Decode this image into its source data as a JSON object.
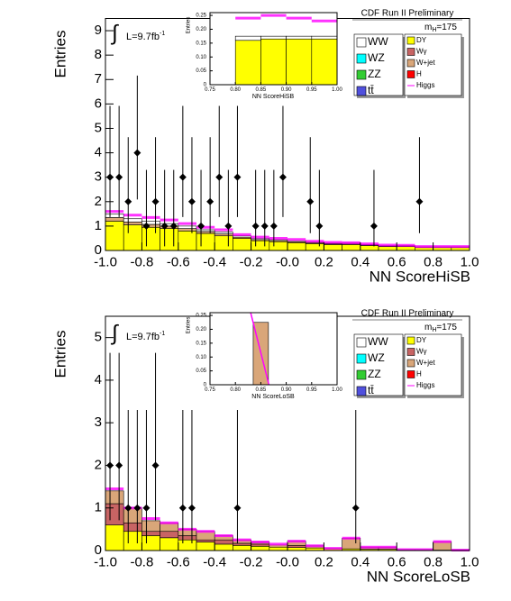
{
  "chart_data": [
    {
      "type": "histogram",
      "title": "CDF Run II Preliminary",
      "mass_label": "m",
      "mass_sub": "H",
      "mass_value": "=175",
      "lumi_symbol": "∫",
      "lumi": "L=9.7fb",
      "lumi_sup": "-1",
      "xlabel": "NN ScoreHiSB",
      "ylabel": "Entries",
      "xlim": [
        -1,
        1
      ],
      "ylim": [
        0,
        9.5
      ],
      "xticks": [
        {
          "value": -1,
          "label": "-1.0"
        },
        -0.8,
        -0.6,
        -0.4,
        -0.2,
        {
          "value": 0,
          "label": "-0.0"
        },
        0.2,
        0.4,
        0.6,
        0.8,
        {
          "value": 1,
          "label": "1.0"
        }
      ],
      "yticks": [
        0,
        1,
        2,
        3,
        4,
        5,
        6,
        7,
        8,
        9
      ],
      "bins": [
        -1,
        -0.9,
        -0.8,
        -0.7,
        -0.6,
        -0.5,
        -0.4,
        -0.3,
        -0.2,
        -0.1,
        0,
        0.1,
        0.2,
        0.3,
        0.4,
        0.5,
        0.6,
        0.7,
        0.8,
        0.9,
        1
      ],
      "series": [
        {
          "name": "DY",
          "color": "#ffff00",
          "values": [
            1.2,
            1.05,
            0.95,
            0.9,
            0.8,
            0.7,
            0.6,
            0.5,
            0.4,
            0.36,
            0.32,
            0.28,
            0.24,
            0.24,
            0.2,
            0.16,
            0.16,
            0.12,
            0.12,
            0.12
          ]
        },
        {
          "name": "Wγ",
          "color": "#c86464"
        },
        {
          "name": "W+jet",
          "color": "#d9a679",
          "values": [
            0.15,
            0.12,
            0.12,
            0.1,
            0.1,
            0.08,
            0.08,
            0.05,
            0.05,
            0.05,
            0.04,
            0.04,
            0.03,
            0.03,
            0.03,
            0.02,
            0.02,
            0.02,
            0.02,
            0.02
          ]
        },
        {
          "name": "H",
          "color": "#ff0000"
        },
        {
          "name": "Higgs",
          "color": "#ff00ff",
          "style": "line",
          "values": [
            1.6,
            1.45,
            1.35,
            1.25,
            1.1,
            0.95,
            0.85,
            0.65,
            0.55,
            0.5,
            0.45,
            0.38,
            0.33,
            0.32,
            0.27,
            0.22,
            0.21,
            0.16,
            0.16,
            0.16
          ]
        },
        {
          "name": "WW",
          "color": "#ffffff",
          "values": [
            0.15,
            0.13,
            0.13,
            0.1,
            0.1,
            0.07,
            0.07,
            0.05,
            0.05,
            0.04,
            0.04,
            0.03,
            0.03,
            0.03,
            0.02,
            0.02,
            0.02,
            0.01,
            0.01,
            0.01
          ]
        },
        {
          "name": "WZ",
          "color": "#00ffff"
        },
        {
          "name": "ZZ",
          "color": "#33cc33"
        },
        {
          "name": "tt̄",
          "color": "#5050dd"
        }
      ],
      "data": {
        "x": [
          -0.975,
          -0.925,
          -0.875,
          -0.825,
          -0.775,
          -0.725,
          -0.675,
          -0.625,
          -0.575,
          -0.525,
          -0.475,
          -0.425,
          -0.375,
          -0.325,
          -0.275,
          -0.175,
          -0.125,
          -0.075,
          -0.025,
          0.125,
          0.175,
          0.475,
          0.725
        ],
        "values": [
          3,
          3,
          2,
          4,
          1,
          2,
          1,
          1,
          3,
          2,
          1,
          2,
          3,
          1,
          3,
          1,
          1,
          1,
          3,
          2,
          1,
          1,
          2
        ],
        "errors_low": [
          1.63,
          1.63,
          1.29,
          1.91,
          0.83,
          1.29,
          0.83,
          0.83,
          1.63,
          1.29,
          0.83,
          1.29,
          1.63,
          0.83,
          1.63,
          0.83,
          0.83,
          0.83,
          1.63,
          1.29,
          0.83,
          0.83,
          1.29
        ],
        "errors_high": [
          2.92,
          2.92,
          2.64,
          3.16,
          2.3,
          2.64,
          2.3,
          2.3,
          2.92,
          2.64,
          2.3,
          2.64,
          2.92,
          2.3,
          2.92,
          2.3,
          2.3,
          2.3,
          2.92,
          2.64,
          2.3,
          2.3,
          2.64
        ]
      },
      "inset": {
        "xlabel": "NN ScoreHiSB",
        "ylabel": "Entries",
        "xlim": [
          0.75,
          1
        ],
        "ylim": [
          0,
          0.26
        ],
        "xticks": [
          0.75,
          {
            "value": 0.8,
            "label": "0.80"
          },
          0.85,
          {
            "value": 0.9,
            "label": "0.90"
          },
          0.95,
          {
            "value": 1,
            "label": "1.00"
          }
        ],
        "yticks": [
          0,
          0.05,
          {
            "value": 0.1,
            "label": "0.10"
          },
          0.15,
          {
            "value": 0.2,
            "label": "0.20"
          },
          0.25
        ],
        "bins": [
          0.75,
          0.8,
          0.85,
          0.9,
          0.95,
          1
        ],
        "series": [
          {
            "color": "#ffff00",
            "values": [
              0,
              0.16,
              0.165,
              0.165,
              0.165
            ]
          },
          {
            "color": "#ffffff",
            "values": [
              0,
              0.015,
              0.01,
              0.01,
              0.01
            ]
          },
          {
            "color": "#ff00ff",
            "style": "line",
            "values": [
              0,
              0.24,
              0.25,
              0.24,
              0.23
            ]
          }
        ]
      }
    },
    {
      "type": "histogram",
      "title": "CDF Run II Preliminary",
      "mass_label": "m",
      "mass_sub": "H",
      "mass_value": "=175",
      "lumi_symbol": "∫",
      "lumi": "L=9.7fb",
      "lumi_sup": "-1",
      "xlabel": "NN ScoreLoSB",
      "ylabel": "Entries",
      "xlim": [
        -1,
        1
      ],
      "ylim": [
        0,
        5.5
      ],
      "xticks": [
        {
          "value": -1,
          "label": "-1.0"
        },
        -0.8,
        -0.6,
        -0.4,
        -0.2,
        {
          "value": 0,
          "label": "-0.0"
        },
        0.2,
        0.4,
        0.6,
        0.8,
        {
          "value": 1,
          "label": "1.0"
        }
      ],
      "yticks": [
        0,
        1,
        2,
        3,
        4,
        5
      ],
      "bins": [
        -1,
        -0.9,
        -0.8,
        -0.7,
        -0.6,
        -0.5,
        -0.4,
        -0.3,
        -0.2,
        -0.1,
        0,
        0.1,
        0.2,
        0.3,
        0.4,
        0.5,
        0.6,
        0.7,
        0.8,
        0.9,
        1
      ],
      "series": [
        {
          "name": "DY",
          "color": "#ffff00",
          "values": [
            0.6,
            0.45,
            0.35,
            0.3,
            0.25,
            0.2,
            0.15,
            0.12,
            0.1,
            0.08,
            0.07,
            0.06,
            0.05,
            0.04,
            0.03,
            0.03,
            0.02,
            0.02,
            0.01,
            0.01
          ]
        },
        {
          "name": "Wγ",
          "color": "#c86464",
          "values": [
            0.5,
            0.2,
            0.1,
            0.15,
            0.1,
            0.05,
            0.1,
            0.05,
            0.05,
            0,
            0.05,
            0,
            0,
            0,
            0,
            0,
            0,
            0,
            0,
            0
          ]
        },
        {
          "name": "W+jet",
          "color": "#d9a679",
          "values": [
            0.3,
            0.35,
            0.25,
            0.2,
            0.15,
            0.2,
            0.1,
            0.08,
            0.05,
            0.05,
            0.1,
            0.05,
            0,
            0.25,
            0.05,
            0.05,
            0,
            0,
            0.2,
            0
          ]
        },
        {
          "name": "H",
          "color": "#ff0000"
        },
        {
          "name": "Higgs",
          "color": "#ff00ff",
          "style": "line",
          "values": [
            1.45,
            1.0,
            0.75,
            0.65,
            0.5,
            0.45,
            0.35,
            0.25,
            0.2,
            0.15,
            0.22,
            0.11,
            0.05,
            0.29,
            0.08,
            0.08,
            0.02,
            0.02,
            0.21,
            0.01
          ]
        },
        {
          "name": "WW",
          "color": "#ffffff"
        },
        {
          "name": "WZ",
          "color": "#00ffff"
        },
        {
          "name": "ZZ",
          "color": "#33cc33"
        },
        {
          "name": "tt̄",
          "color": "#5050dd"
        }
      ],
      "data": {
        "x": [
          -0.975,
          -0.925,
          -0.875,
          -0.825,
          -0.775,
          -0.725,
          -0.575,
          -0.525,
          -0.275,
          0.375
        ],
        "values": [
          2,
          2,
          1,
          1,
          1,
          2,
          1,
          1,
          1,
          1
        ],
        "errors_low": [
          1.29,
          1.29,
          0.83,
          0.83,
          0.83,
          1.29,
          0.83,
          0.83,
          0.83,
          0.83
        ],
        "errors_high": [
          2.64,
          2.64,
          2.3,
          2.3,
          2.3,
          2.64,
          2.3,
          2.3,
          2.3,
          2.3
        ]
      },
      "inset": {
        "xlabel": "NN ScoreLoSB",
        "ylabel": "Entries",
        "xlim": [
          0.75,
          1
        ],
        "ylim": [
          0,
          0.26
        ],
        "xticks": [
          0.75,
          {
            "value": 0.8,
            "label": "0.80"
          },
          0.85,
          {
            "value": 0.9,
            "label": "0.90"
          },
          0.95,
          {
            "value": 1,
            "label": "1.00"
          }
        ],
        "yticks": [
          0,
          0.05,
          {
            "value": 0.1,
            "label": "0.10"
          },
          0.15,
          {
            "value": 0.2,
            "label": "0.20"
          },
          0.25
        ],
        "bins": [
          0.75,
          0.8,
          0.835,
          0.865,
          0.9,
          0.95,
          1
        ],
        "series": [
          {
            "color": "#d9a679",
            "values": [
              0,
              0,
              0.225,
              0,
              0,
              0
            ]
          },
          {
            "color": "#ff00ff",
            "style": "polyline",
            "x": [
              0.83,
              0.866
            ],
            "values": [
              0.26,
              0
            ]
          }
        ]
      }
    }
  ]
}
